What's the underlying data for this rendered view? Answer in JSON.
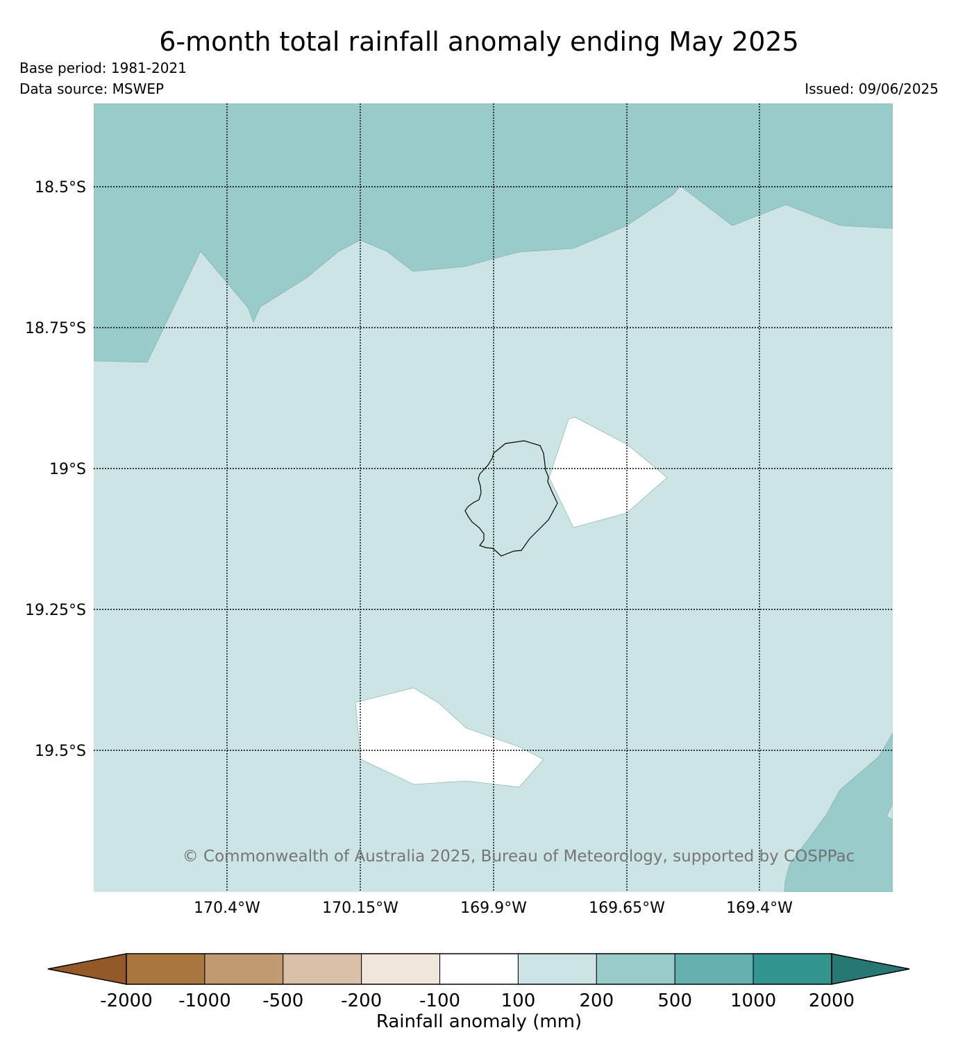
{
  "header": {
    "title": "6-month total rainfall anomaly ending May 2025",
    "base_period": "Base period: 1981-2021",
    "data_source": "Data source: MSWEP",
    "issued": "Issued: 09/06/2025"
  },
  "map": {
    "lat_ticks": [
      "18.5°S",
      "18.75°S",
      "19°S",
      "19.25°S",
      "19.5°S"
    ],
    "lon_ticks": [
      "170.4°W",
      "170.15°W",
      "169.9°W",
      "169.65°W",
      "169.4°W"
    ],
    "copyright": "© Commonwealth of Australia 2025, Bureau of Meteorology, supported by COSPPac",
    "colors": {
      "anomaly_200_500": "#9acbcb",
      "anomaly_100_200": "#cce5e4",
      "anomaly_-100_100": "#ffffff"
    }
  },
  "colorbar": {
    "label": "Rainfall anomaly (mm)",
    "ticks": [
      "-2000",
      "-1000",
      "-500",
      "-200",
      "-100",
      "100",
      "200",
      "500",
      "1000",
      "2000"
    ],
    "colors": [
      "#935a27",
      "#aa763f",
      "#c29a72",
      "#dbc0a8",
      "#f1e6dc",
      "#ffffff",
      "#cce5e4",
      "#9acbcb",
      "#66b0b0",
      "#32968f",
      "#277874"
    ]
  }
}
